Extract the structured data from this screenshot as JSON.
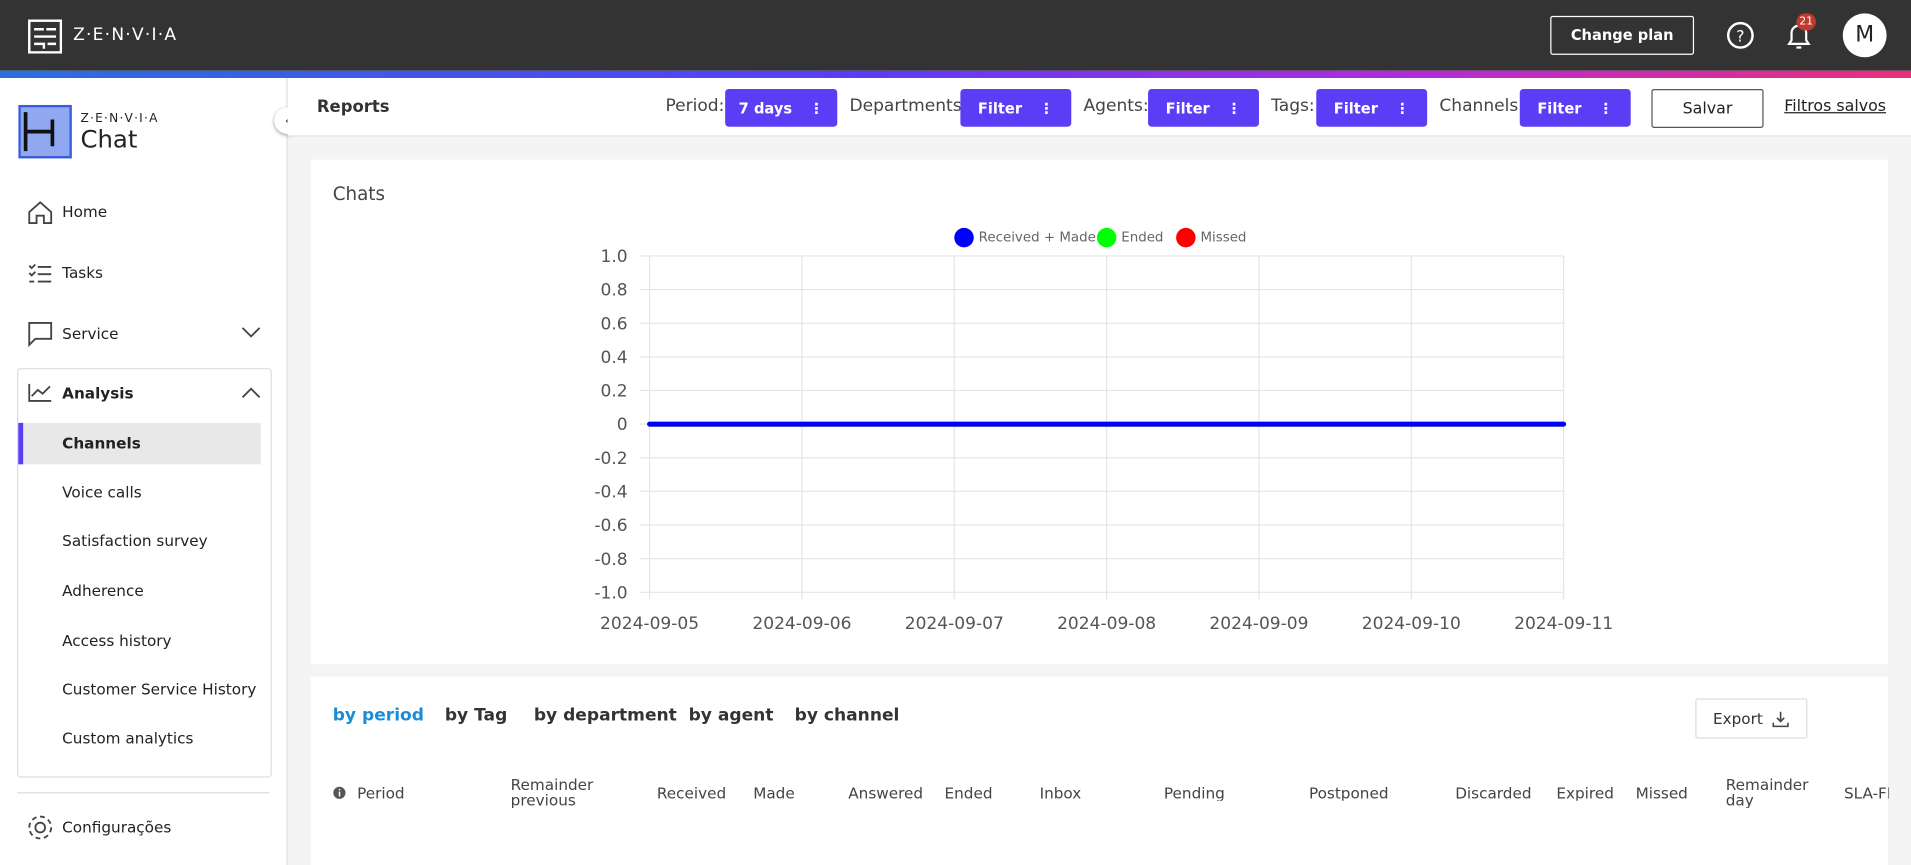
{
  "header": {
    "brand": "Z·E·N·V·I·A",
    "change_plan": "Change plan",
    "notifications": "21",
    "avatar": "M"
  },
  "sidebar": {
    "brand_small": "Z·E·N·V·I·A",
    "brand_big": "Chat",
    "menu": [
      "Home",
      "Tasks",
      "Service",
      "Analysis"
    ],
    "analysis_items": [
      "Channels",
      "Voice calls",
      "Satisfaction survey",
      "Adherence",
      "Access history",
      "Customer Service History",
      "Custom analytics"
    ],
    "settings": "Configurações"
  },
  "toolbar": {
    "title": "Reports",
    "filters": [
      {
        "label": "Period:",
        "button": "7 days"
      },
      {
        "label": "Departments:",
        "button": "Filter"
      },
      {
        "label": "Agents:",
        "button": "Filter"
      },
      {
        "label": "Tags:",
        "button": "Filter"
      },
      {
        "label": "Channels:",
        "button": "Filter"
      }
    ],
    "save": "Salvar",
    "saved_filters": "Filtros salvos"
  },
  "chart_data": {
    "type": "line",
    "title": "Chats",
    "categories": [
      "2024-09-05",
      "2024-09-06",
      "2024-09-07",
      "2024-09-08",
      "2024-09-09",
      "2024-09-10",
      "2024-09-11"
    ],
    "series": [
      {
        "name": "Received + Made",
        "color": "#0000ff",
        "values": [
          0,
          0,
          0,
          0,
          0,
          0,
          0
        ]
      },
      {
        "name": "Ended",
        "color": "#00ff00",
        "values": [
          0,
          0,
          0,
          0,
          0,
          0,
          0
        ]
      },
      {
        "name": "Missed",
        "color": "#ff0000",
        "values": [
          0,
          0,
          0,
          0,
          0,
          0,
          0
        ]
      }
    ],
    "ylim": [
      -1,
      1
    ],
    "yticks": [
      {
        "value": -1,
        "label": "-1.0"
      },
      -0.8,
      -0.6,
      -0.4,
      -0.2,
      0,
      0.2,
      0.4,
      0.6,
      0.8,
      {
        "value": 1,
        "label": "1.0"
      }
    ],
    "grid": true,
    "legend": "top"
  },
  "tabs": [
    "by period",
    "by Tag",
    "by department",
    "by agent",
    "by channel"
  ],
  "export": "Export",
  "table": {
    "headers": [
      "Period",
      "Remainder previous",
      "Received",
      "Made",
      "Answered",
      "Ended",
      "Inbox",
      "Pending",
      "Postponed",
      "Discarded",
      "Expired",
      "Missed",
      "Remainder day",
      "SLA-FR"
    ]
  }
}
